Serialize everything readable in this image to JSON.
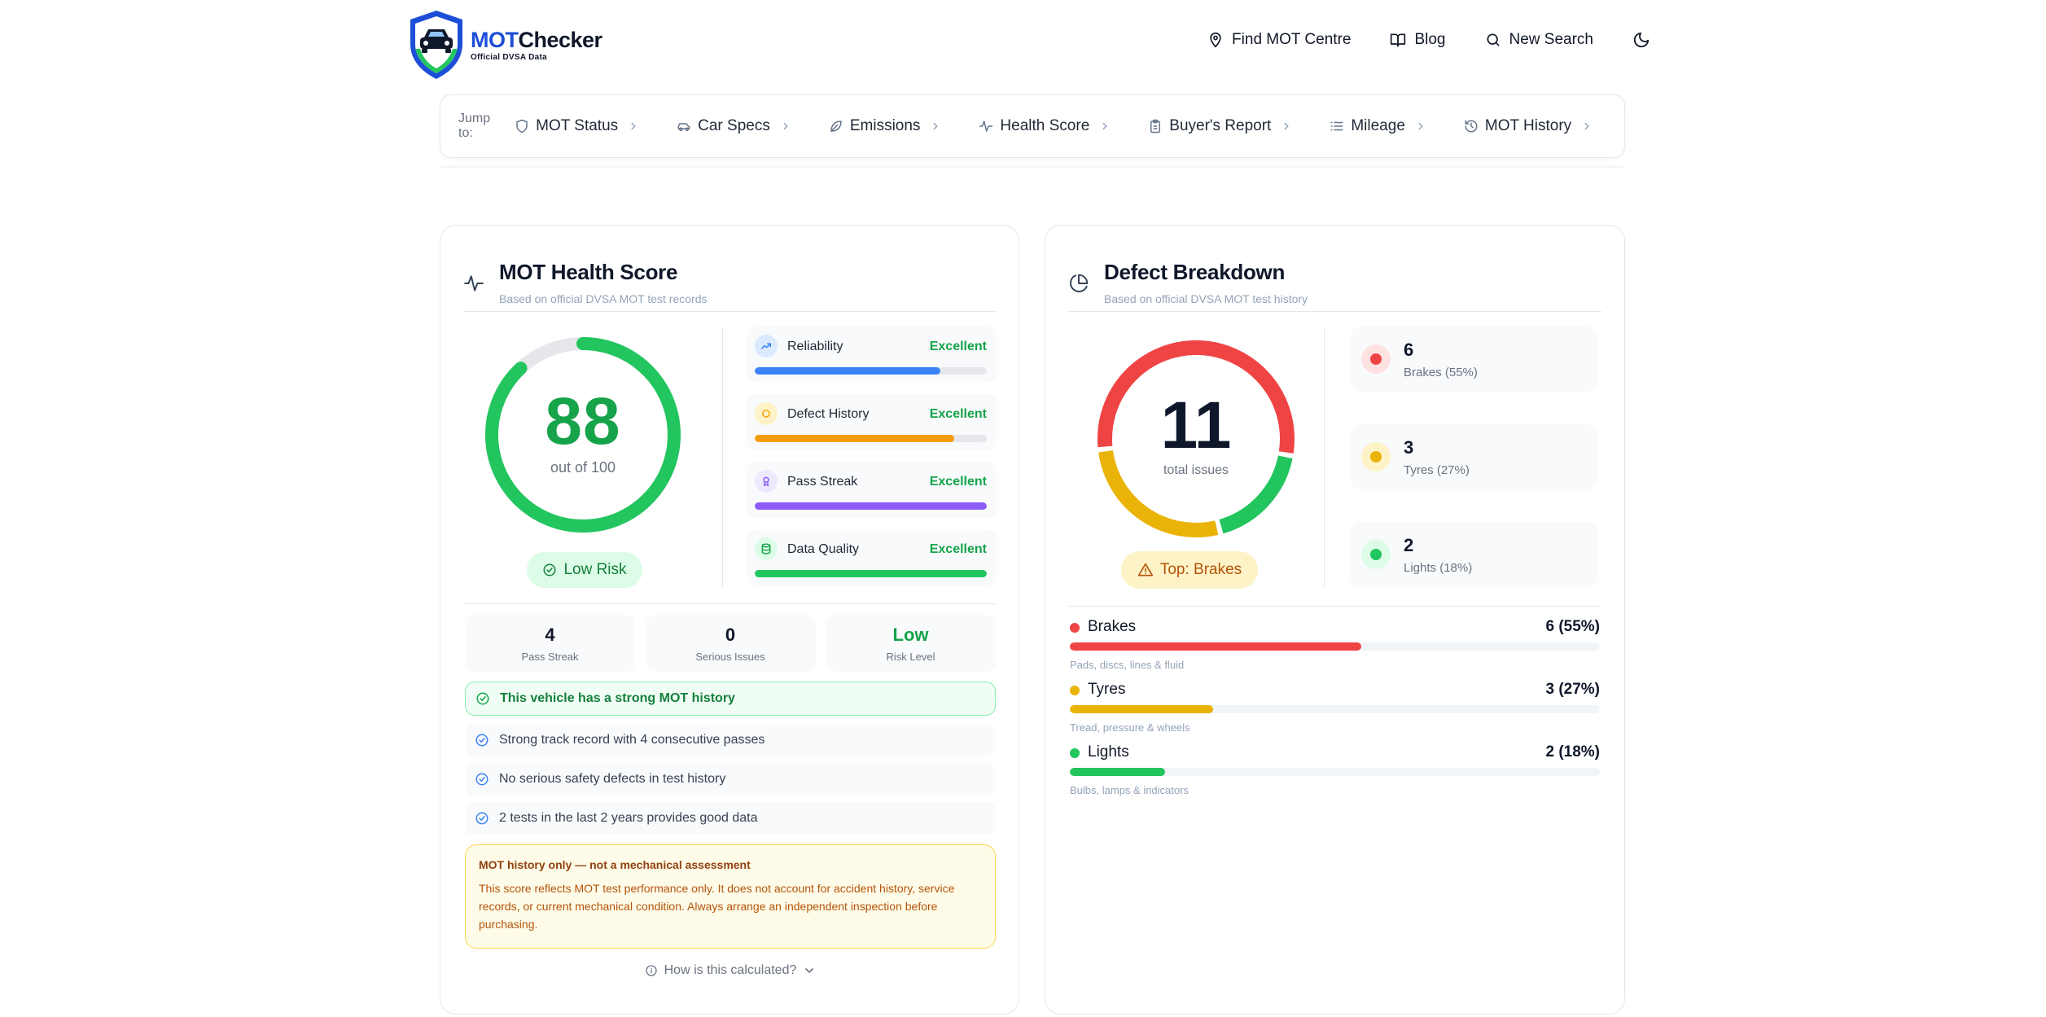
{
  "brand": {
    "name_part1": "MOT",
    "name_part2": "Checker",
    "tagline": "Official DVSA Data",
    "primary_color": "#1d4ed8",
    "accent_color": "#22c55e"
  },
  "topnav": {
    "items": [
      {
        "label": "Find MOT Centre",
        "icon": "map-pin-icon"
      },
      {
        "label": "Blog",
        "icon": "book-open-icon"
      },
      {
        "label": "New Search",
        "icon": "search-icon"
      }
    ],
    "theme_toggle_icon": "moon-icon"
  },
  "jumpbar": {
    "label": "Jump to:",
    "items": [
      {
        "label": "MOT Status",
        "icon": "shield-icon"
      },
      {
        "label": "Car Specs",
        "icon": "car-icon"
      },
      {
        "label": "Emissions",
        "icon": "leaf-icon"
      },
      {
        "label": "Health Score",
        "icon": "activity-icon"
      },
      {
        "label": "Buyer's Report",
        "icon": "clipboard-icon"
      },
      {
        "label": "Mileage",
        "icon": "list-icon"
      },
      {
        "label": "MOT History",
        "icon": "history-icon"
      }
    ]
  },
  "health": {
    "title": "MOT Health Score",
    "subtitle": "Based on official DVSA MOT test records",
    "score": "88",
    "score_value": 88,
    "score_max": 100,
    "score_sub": "out of 100",
    "risk_label": "Low Risk",
    "metrics": [
      {
        "label": "Reliability",
        "value": "Excellent",
        "fill": 0.8,
        "color": "#3b82f6",
        "icon_bg": "#dbeafe",
        "icon": "trending-up-icon"
      },
      {
        "label": "Defect History",
        "value": "Excellent",
        "fill": 0.86,
        "color": "#f59e0b",
        "icon_bg": "#fef3c7",
        "icon": "circle-icon"
      },
      {
        "label": "Pass Streak",
        "value": "Excellent",
        "fill": 1.0,
        "color": "#8b5cf6",
        "icon_bg": "#ede9fe",
        "icon": "award-icon"
      },
      {
        "label": "Data Quality",
        "value": "Excellent",
        "fill": 1.0,
        "color": "#22c55e",
        "icon_bg": "#dcfce7",
        "icon": "database-icon"
      }
    ],
    "stats": [
      {
        "value": "4",
        "label": "Pass Streak",
        "green": false
      },
      {
        "value": "0",
        "label": "Serious Issues",
        "green": false
      },
      {
        "value": "Low",
        "label": "Risk Level",
        "green": true
      }
    ],
    "banner": "This vehicle has a strong MOT history",
    "points": [
      "Strong track record with 4 consecutive passes",
      "No serious safety defects in test history",
      "2 tests in the last 2 years provides good data"
    ],
    "warning_title": "MOT history only — not a mechanical assessment",
    "warning_body": "This score reflects MOT test performance only. It does not account for accident history, service records, or current mechanical condition. Always arrange an independent inspection before purchasing.",
    "how_calculated": "How is this calculated?"
  },
  "defects": {
    "title": "Defect Breakdown",
    "subtitle": "Based on official DVSA MOT test history",
    "total": "11",
    "total_label": "total issues",
    "top_label": "Top: Brakes",
    "categories": [
      {
        "name": "Brakes",
        "count": "6",
        "count_value": 6,
        "percent": 55,
        "legend": "Brakes (55%)",
        "bar_label": "6 (55%)",
        "desc": "Pads, discs, lines & fluid",
        "color": "#ef4444",
        "bg": "#fee2e2"
      },
      {
        "name": "Tyres",
        "count": "3",
        "count_value": 3,
        "percent": 27,
        "legend": "Tyres (27%)",
        "bar_label": "3 (27%)",
        "desc": "Tread, pressure & wheels",
        "color": "#eab308",
        "bg": "#fef3c7"
      },
      {
        "name": "Lights",
        "count": "2",
        "count_value": 2,
        "percent": 18,
        "legend": "Lights (18%)",
        "bar_label": "2 (18%)",
        "desc": "Bulbs, lamps & indicators",
        "color": "#22c55e",
        "bg": "#dcfce7"
      }
    ]
  }
}
